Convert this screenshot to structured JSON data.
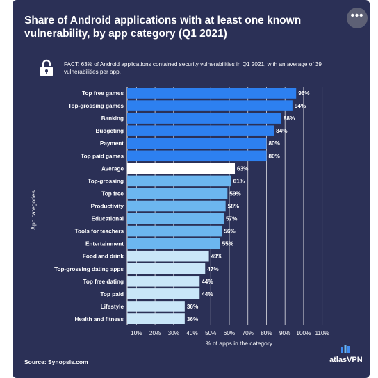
{
  "header": {
    "title": "Share of Android applications with at least one known vulnerability, by app category  (Q1 2021)",
    "menu_label": "•••"
  },
  "fact": "FACT: 63% of Android applications contained security vulnerabilities in Q1 2021, with an average of 39 vulnerabilities per app.",
  "footer": {
    "source": "Source: Synopsis.com",
    "brand": "atlasVPN"
  },
  "colors": {
    "background": "#2b3056",
    "top_group": "#2d80f0",
    "average": "#ffffff",
    "mid_group": "#6cb6ef",
    "low_group": "#c9e6f8"
  },
  "chart_data": {
    "type": "bar",
    "orientation": "horizontal",
    "categories": [
      "Top free games",
      "Top-grossing games",
      "Banking",
      "Budgeting",
      "Payment",
      "Top paid games",
      "Average",
      "Top-grossing",
      "Top free",
      "Productivity",
      "Educational",
      "Tools for teachers",
      "Entertainment",
      "Food and drink",
      "Top-grossing dating apps",
      "Top free dating",
      "Top paid",
      "Lifestyle",
      "Health and fitness"
    ],
    "values": [
      96,
      94,
      88,
      84,
      80,
      80,
      63,
      61,
      59,
      58,
      57,
      56,
      55,
      49,
      47,
      44,
      44,
      36,
      36
    ],
    "data_labels": [
      "96%",
      "94%",
      "88%",
      "84%",
      "80%",
      "80%",
      "63%",
      "61%",
      "59%",
      "58%",
      "57%",
      "56%",
      "55%",
      "49%",
      "47%",
      "44%",
      "44%",
      "36%",
      "36%"
    ],
    "groups": [
      "top_group",
      "top_group",
      "top_group",
      "top_group",
      "top_group",
      "top_group",
      "average",
      "mid_group",
      "mid_group",
      "mid_group",
      "mid_group",
      "mid_group",
      "mid_group",
      "low_group",
      "low_group",
      "low_group",
      "low_group",
      "low_group",
      "low_group"
    ],
    "xticks": [
      "10%",
      "20%",
      "30%",
      "40%",
      "50%",
      "60%",
      "70%",
      "80%",
      "90%",
      "100%",
      "110%"
    ],
    "xlabel": "% of apps in the category",
    "ylabel": "App categories",
    "xlim": [
      5,
      115
    ],
    "grid": true
  }
}
